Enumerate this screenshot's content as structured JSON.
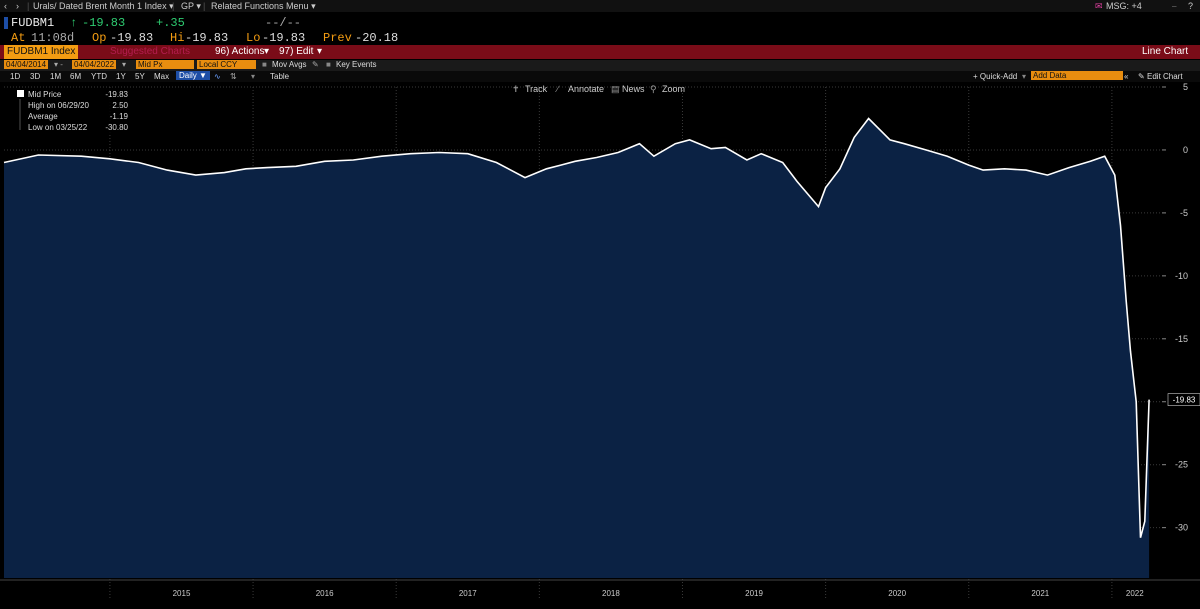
{
  "nav": {
    "back_icon": "chevron-left-icon",
    "fwd_icon": "chevron-right-icon",
    "security_title": "Urals/ Dated Brent Month 1 Index",
    "function": "GP",
    "related_menu": "Related Functions Menu",
    "msg": "MSG: +4",
    "help": "?"
  },
  "quote": {
    "ticker": "FUDBM1",
    "last": "-19.83",
    "change": "+.35",
    "blank": "--/--",
    "time_label": "At",
    "time": "11:08d",
    "open_label": "Op",
    "open": "-19.83",
    "high_label": "Hi",
    "high": "-19.83",
    "low_label": "Lo",
    "low": "-19.83",
    "prev_label": "Prev",
    "prev": "-20.18"
  },
  "toolbar": {
    "security": "FUDBM1 Index",
    "suggested": "Suggested Charts",
    "actions": "96) Actions",
    "edit": "97) Edit",
    "chart_type": "Line Chart"
  },
  "controls": {
    "start_date": "04/04/2014",
    "end_date": "04/04/2022",
    "field": "Mid Px",
    "currency": "Local CCY",
    "mov_avgs": "Mov Avgs",
    "key_events": "Key Events"
  },
  "periods": {
    "items": [
      "1D",
      "3D",
      "1M",
      "6M",
      "YTD",
      "1Y",
      "5Y",
      "Max"
    ],
    "frequency": "Daily",
    "table": "Table",
    "quick_add": "+ Quick-Add",
    "add_data": "Add Data",
    "edit_chart": "Edit Chart"
  },
  "chart_menu": {
    "track": "Track",
    "annotate": "Annotate",
    "news": "News",
    "zoom": "Zoom"
  },
  "legend": {
    "mid_price_label": "Mid Price",
    "mid_price": "-19.83",
    "high_label": "High on 06/29/20",
    "high": "2.50",
    "avg_label": "Average",
    "avg": "-1.19",
    "low_label": "Low on 03/25/22",
    "low": "-30.80"
  },
  "colors": {
    "background": "#000000",
    "fill": "#0b2244",
    "line": "#ffffff",
    "accent_orange": "#f39c12",
    "accent_red": "#7a0c18",
    "green": "#2ecc71",
    "active_blue": "#1d4ea6"
  },
  "chart_data": {
    "type": "area",
    "series": [
      {
        "name": "Mid Price",
        "x": [
          2014.26,
          2014.5,
          2014.8,
          2015.0,
          2015.2,
          2015.4,
          2015.6,
          2015.8,
          2015.95,
          2016.1,
          2016.3,
          2016.5,
          2016.7,
          2016.9,
          2017.1,
          2017.3,
          2017.5,
          2017.7,
          2017.9,
          2018.05,
          2018.15,
          2018.25,
          2018.4,
          2018.55,
          2018.7,
          2018.8,
          2018.95,
          2019.05,
          2019.2,
          2019.3,
          2019.45,
          2019.55,
          2019.7,
          2019.8,
          2019.95,
          2020.0,
          2020.1,
          2020.2,
          2020.3,
          2020.45,
          2020.55,
          2020.7,
          2020.85,
          2021.0,
          2021.1,
          2021.25,
          2021.4,
          2021.55,
          2021.7,
          2021.85,
          2021.95,
          2022.02,
          2022.06,
          2022.1,
          2022.13,
          2022.17,
          2022.2,
          2022.23,
          2022.26
        ],
        "values": [
          -1.0,
          -0.4,
          -0.5,
          -0.7,
          -1.0,
          -1.6,
          -2.0,
          -1.8,
          -1.5,
          -1.4,
          -1.3,
          -0.9,
          -0.8,
          -0.5,
          -0.3,
          -0.2,
          -0.3,
          -1.0,
          -2.2,
          -1.5,
          -1.2,
          -0.9,
          -0.6,
          -0.2,
          0.5,
          -0.5,
          0.5,
          0.8,
          0.1,
          0.2,
          -0.8,
          -0.3,
          -1.0,
          -2.5,
          -4.5,
          -3.0,
          -1.5,
          1.0,
          2.5,
          0.8,
          0.5,
          0.0,
          -0.5,
          -1.2,
          -1.6,
          -1.5,
          -1.6,
          -2.0,
          -1.4,
          -0.9,
          -0.5,
          -2.0,
          -6.0,
          -12.0,
          -16.0,
          -20.0,
          -30.8,
          -29.5,
          -19.83
        ]
      }
    ],
    "x_ticks": [
      "2015",
      "2016",
      "2017",
      "2018",
      "2019",
      "2020",
      "2021",
      "2022"
    ],
    "y_ticks": [
      5,
      0,
      -5,
      -10,
      -15,
      -20,
      -25,
      -30
    ],
    "ylim": [
      -34,
      5
    ],
    "xlim": [
      2014.26,
      2022.35
    ],
    "last_value_label": "-19.83",
    "grid": true,
    "legend_position": "top-left"
  }
}
